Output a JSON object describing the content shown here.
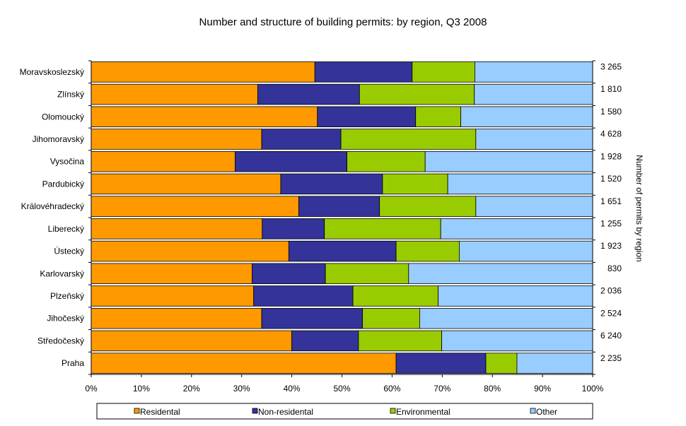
{
  "chart_data": {
    "type": "bar",
    "orientation": "horizontal",
    "stacked": "percent",
    "title": "Number and structure of building permits: by region, Q3 2008",
    "xlabel": "",
    "ylabel": "",
    "right_axis_label": "Number of permits by region",
    "xlim": [
      0,
      100
    ],
    "x_ticks": [
      "0%",
      "10%",
      "20%",
      "30%",
      "40%",
      "50%",
      "60%",
      "70%",
      "80%",
      "90%",
      "100%"
    ],
    "grid": false,
    "legend_position": "bottom",
    "categories": [
      "Moravskoslezský",
      "Zlínský",
      "Olomoucký",
      "Jihomoravský",
      "Vysočina",
      "Pardubický",
      "Královéhradecký",
      "Liberecký",
      "Ústecký",
      "Karlovarský",
      "Plzeňský",
      "Jihočeský",
      "Středočeský",
      "Praha"
    ],
    "totals": [
      "3 265",
      "1 810",
      "1 580",
      "4 628",
      "1 928",
      "1 520",
      "1 651",
      "1 255",
      "1 923",
      "830",
      "2 036",
      "2 524",
      "6 240",
      "2 235"
    ],
    "series": [
      {
        "name": "Residental",
        "color": "#FF9900",
        "values": [
          44.6,
          33.2,
          45.1,
          34.0,
          28.7,
          37.8,
          41.4,
          34.1,
          39.4,
          32.1,
          32.4,
          34.0,
          40.0,
          60.8
        ]
      },
      {
        "name": "Non-residental",
        "color": "#333399",
        "values": [
          19.4,
          20.3,
          19.6,
          15.8,
          22.3,
          20.3,
          16.1,
          12.4,
          21.4,
          14.6,
          19.8,
          20.1,
          13.3,
          17.9
        ]
      },
      {
        "name": "Environmental",
        "color": "#99CC00",
        "values": [
          12.5,
          22.9,
          9.0,
          26.9,
          15.6,
          13.0,
          19.2,
          23.2,
          12.6,
          16.6,
          17.0,
          11.4,
          16.6,
          6.2
        ]
      },
      {
        "name": "Other",
        "color": "#99CCFF",
        "values": [
          23.5,
          23.6,
          26.3,
          23.3,
          33.4,
          28.9,
          23.3,
          30.3,
          26.6,
          36.7,
          30.8,
          34.5,
          30.1,
          15.1
        ]
      }
    ]
  }
}
